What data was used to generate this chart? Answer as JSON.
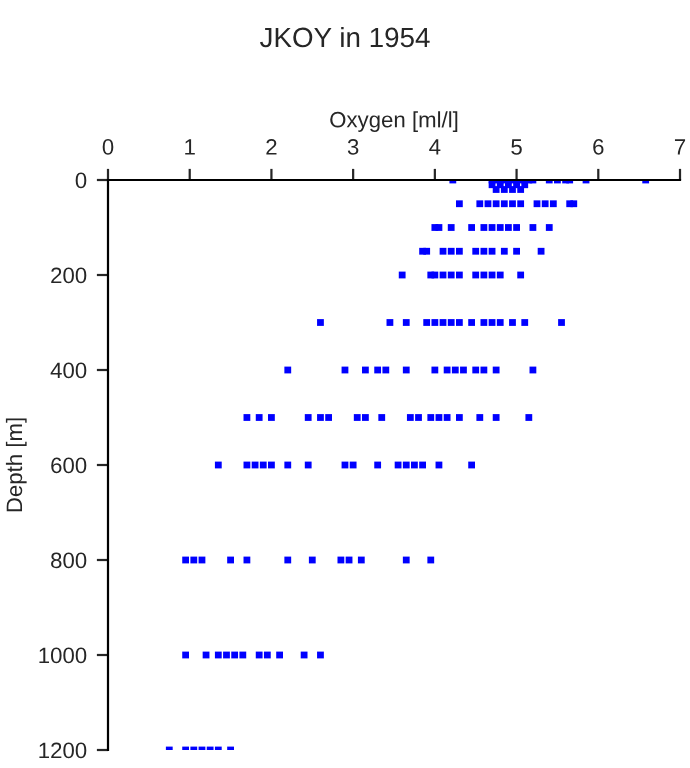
{
  "chart_data": {
    "type": "scatter",
    "title": "JKOY in 1954",
    "xlabel": "Oxygen [ml/l]",
    "ylabel": "Depth [m]",
    "xlim": [
      0,
      7
    ],
    "xticks": [
      0,
      1,
      2,
      3,
      4,
      5,
      6,
      7
    ],
    "ylim": [
      1200,
      0
    ],
    "yticks": [
      0,
      200,
      400,
      600,
      800,
      1000,
      1200
    ],
    "grid": false,
    "marker": "square",
    "series": [
      {
        "color": "#0000ff",
        "x": [
          4.22,
          4.7,
          4.75,
          4.8,
          4.85,
          4.9,
          4.95,
          5.0,
          5.05,
          5.1,
          5.15,
          5.2,
          5.4,
          5.5,
          5.6,
          5.65,
          5.85,
          6.58,
          4.7,
          4.8,
          4.9,
          5.0,
          5.1,
          4.75,
          4.85,
          4.95,
          5.05,
          4.3,
          4.55,
          4.65,
          4.75,
          4.85,
          4.95,
          5.05,
          5.25,
          5.35,
          5.45,
          5.65,
          5.7,
          4.0,
          4.05,
          4.2,
          4.45,
          4.6,
          4.7,
          4.8,
          4.9,
          5.0,
          5.2,
          5.4,
          3.85,
          3.9,
          4.1,
          4.2,
          4.3,
          4.5,
          4.6,
          4.7,
          4.85,
          5.0,
          5.3,
          3.6,
          3.95,
          4.0,
          4.1,
          4.2,
          4.3,
          4.5,
          4.6,
          4.7,
          4.8,
          5.05,
          2.6,
          3.45,
          3.65,
          3.9,
          4.0,
          4.1,
          4.2,
          4.3,
          4.45,
          4.6,
          4.7,
          4.8,
          4.95,
          5.1,
          5.55,
          2.2,
          2.9,
          3.15,
          3.3,
          3.4,
          3.65,
          4.0,
          4.15,
          4.25,
          4.35,
          4.5,
          4.6,
          4.75,
          5.2,
          1.7,
          1.85,
          2.0,
          2.45,
          2.6,
          2.7,
          3.05,
          3.15,
          3.35,
          3.7,
          3.8,
          3.95,
          4.05,
          4.15,
          4.3,
          4.55,
          4.75,
          5.15,
          1.35,
          1.7,
          1.8,
          1.9,
          2.0,
          2.2,
          2.45,
          2.9,
          3.0,
          3.3,
          3.55,
          3.65,
          3.75,
          3.85,
          4.05,
          4.45,
          0.95,
          1.05,
          1.15,
          1.5,
          1.7,
          2.2,
          2.5,
          2.85,
          2.95,
          3.1,
          3.65,
          3.95,
          0.95,
          1.2,
          1.35,
          1.45,
          1.55,
          1.65,
          1.85,
          1.95,
          2.1,
          2.4,
          2.6,
          0.75,
          0.95,
          1.05,
          1.15,
          1.25,
          1.35,
          1.5
        ],
        "values": [
          0,
          0,
          0,
          0,
          0,
          0,
          0,
          0,
          0,
          0,
          0,
          0,
          0,
          0,
          0,
          0,
          0,
          0,
          10,
          10,
          10,
          10,
          10,
          20,
          20,
          20,
          20,
          50,
          50,
          50,
          50,
          50,
          50,
          50,
          50,
          50,
          50,
          50,
          50,
          100,
          100,
          100,
          100,
          100,
          100,
          100,
          100,
          100,
          100,
          100,
          150,
          150,
          150,
          150,
          150,
          150,
          150,
          150,
          150,
          150,
          150,
          200,
          200,
          200,
          200,
          200,
          200,
          200,
          200,
          200,
          200,
          200,
          300,
          300,
          300,
          300,
          300,
          300,
          300,
          300,
          300,
          300,
          300,
          300,
          300,
          300,
          300,
          400,
          400,
          400,
          400,
          400,
          400,
          400,
          400,
          400,
          400,
          400,
          400,
          400,
          400,
          500,
          500,
          500,
          500,
          500,
          500,
          500,
          500,
          500,
          500,
          500,
          500,
          500,
          500,
          500,
          500,
          500,
          500,
          600,
          600,
          600,
          600,
          600,
          600,
          600,
          600,
          600,
          600,
          600,
          600,
          600,
          600,
          600,
          600,
          800,
          800,
          800,
          800,
          800,
          800,
          800,
          800,
          800,
          800,
          800,
          800,
          1000,
          1000,
          1000,
          1000,
          1000,
          1000,
          1000,
          1000,
          1000,
          1000,
          1000,
          1200,
          1200,
          1200,
          1200,
          1200,
          1200,
          1200
        ]
      }
    ]
  }
}
